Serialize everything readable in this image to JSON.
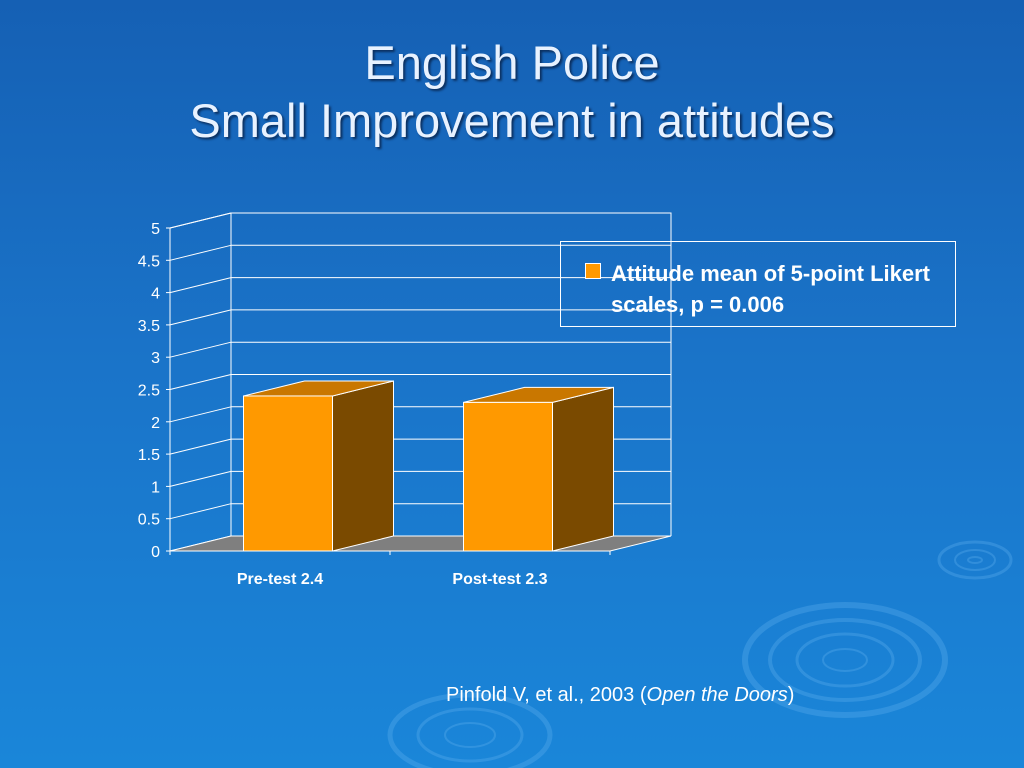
{
  "slide": {
    "title_line1": "English Police",
    "title_line2": "Small Improvement in attitudes",
    "citation_prefix": "Pinfold V, et al., 2003 (",
    "citation_italic": "Open the Doors",
    "citation_suffix": ")"
  },
  "legend": {
    "label": "Attitude mean of 5-point Likert scales, p = 0.006",
    "swatch_color": "#ff9900"
  },
  "chart_data": {
    "type": "bar",
    "style": "3d-column",
    "categories": [
      "Pre-test 2.4",
      "Post-test 2.3"
    ],
    "series": [
      {
        "name": "Attitude mean of 5-point Likert scales, p = 0.006",
        "values": [
          2.4,
          2.3
        ],
        "color": "#ff9900"
      }
    ],
    "y_ticks": [
      "0",
      "0.5",
      "1",
      "1.5",
      "2",
      "2.5",
      "3",
      "3.5",
      "4",
      "4.5",
      "5"
    ],
    "ylim": [
      0,
      5
    ],
    "grid": true,
    "legend_position": "right"
  }
}
